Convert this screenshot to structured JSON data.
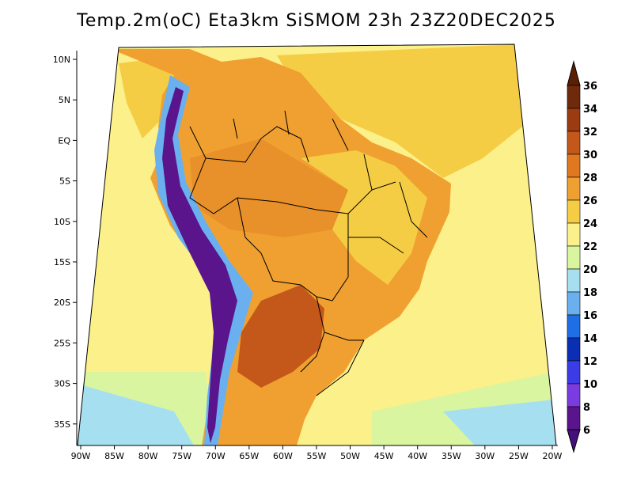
{
  "title": "Temp.2m(oC) Eta3km SiSMOM 23h 23Z20DEC2025",
  "latitude_labels": [
    "10N",
    "5N",
    "EQ",
    "5S",
    "10S",
    "15S",
    "20S",
    "25S",
    "30S",
    "35S"
  ],
  "longitude_labels": [
    "90W",
    "85W",
    "80W",
    "75W",
    "70W",
    "65W",
    "60W",
    "55W",
    "50W",
    "45W",
    "40W",
    "35W",
    "30W",
    "25W",
    "20W"
  ],
  "colorbar": {
    "labels": [
      "36",
      "34",
      "32",
      "30",
      "28",
      "26",
      "24",
      "22",
      "20",
      "18",
      "16",
      "14",
      "12",
      "10",
      "8",
      "6"
    ],
    "colors": [
      "#6e2a0a",
      "#9b3b12",
      "#c4571a",
      "#e0781f",
      "#f0a030",
      "#f5cd45",
      "#fbf08a",
      "#d9f5a0",
      "#a6e0f0",
      "#6ab0ef",
      "#1e6ee6",
      "#0a2fb4",
      "#3c3ce6",
      "#7a3ce0",
      "#5a148c"
    ],
    "top_arrow_color": "#5a2006",
    "bottom_arrow_color": "#46107a"
  },
  "map_colors": {
    "ocean_warm": "#f5cd45",
    "ocean_mid": "#fbf08a",
    "ocean_cool": "#d9f5a0",
    "ocean_cold": "#a6e0f0",
    "land_hot": "#e0781f",
    "land_warm": "#f0a030",
    "amazon": "#e8902a",
    "highlands": "#f5cd45",
    "chaco": "#c4571a",
    "andes_low": "#6ab0ef",
    "andes_high": "#5a148c",
    "borders": "#000000"
  }
}
